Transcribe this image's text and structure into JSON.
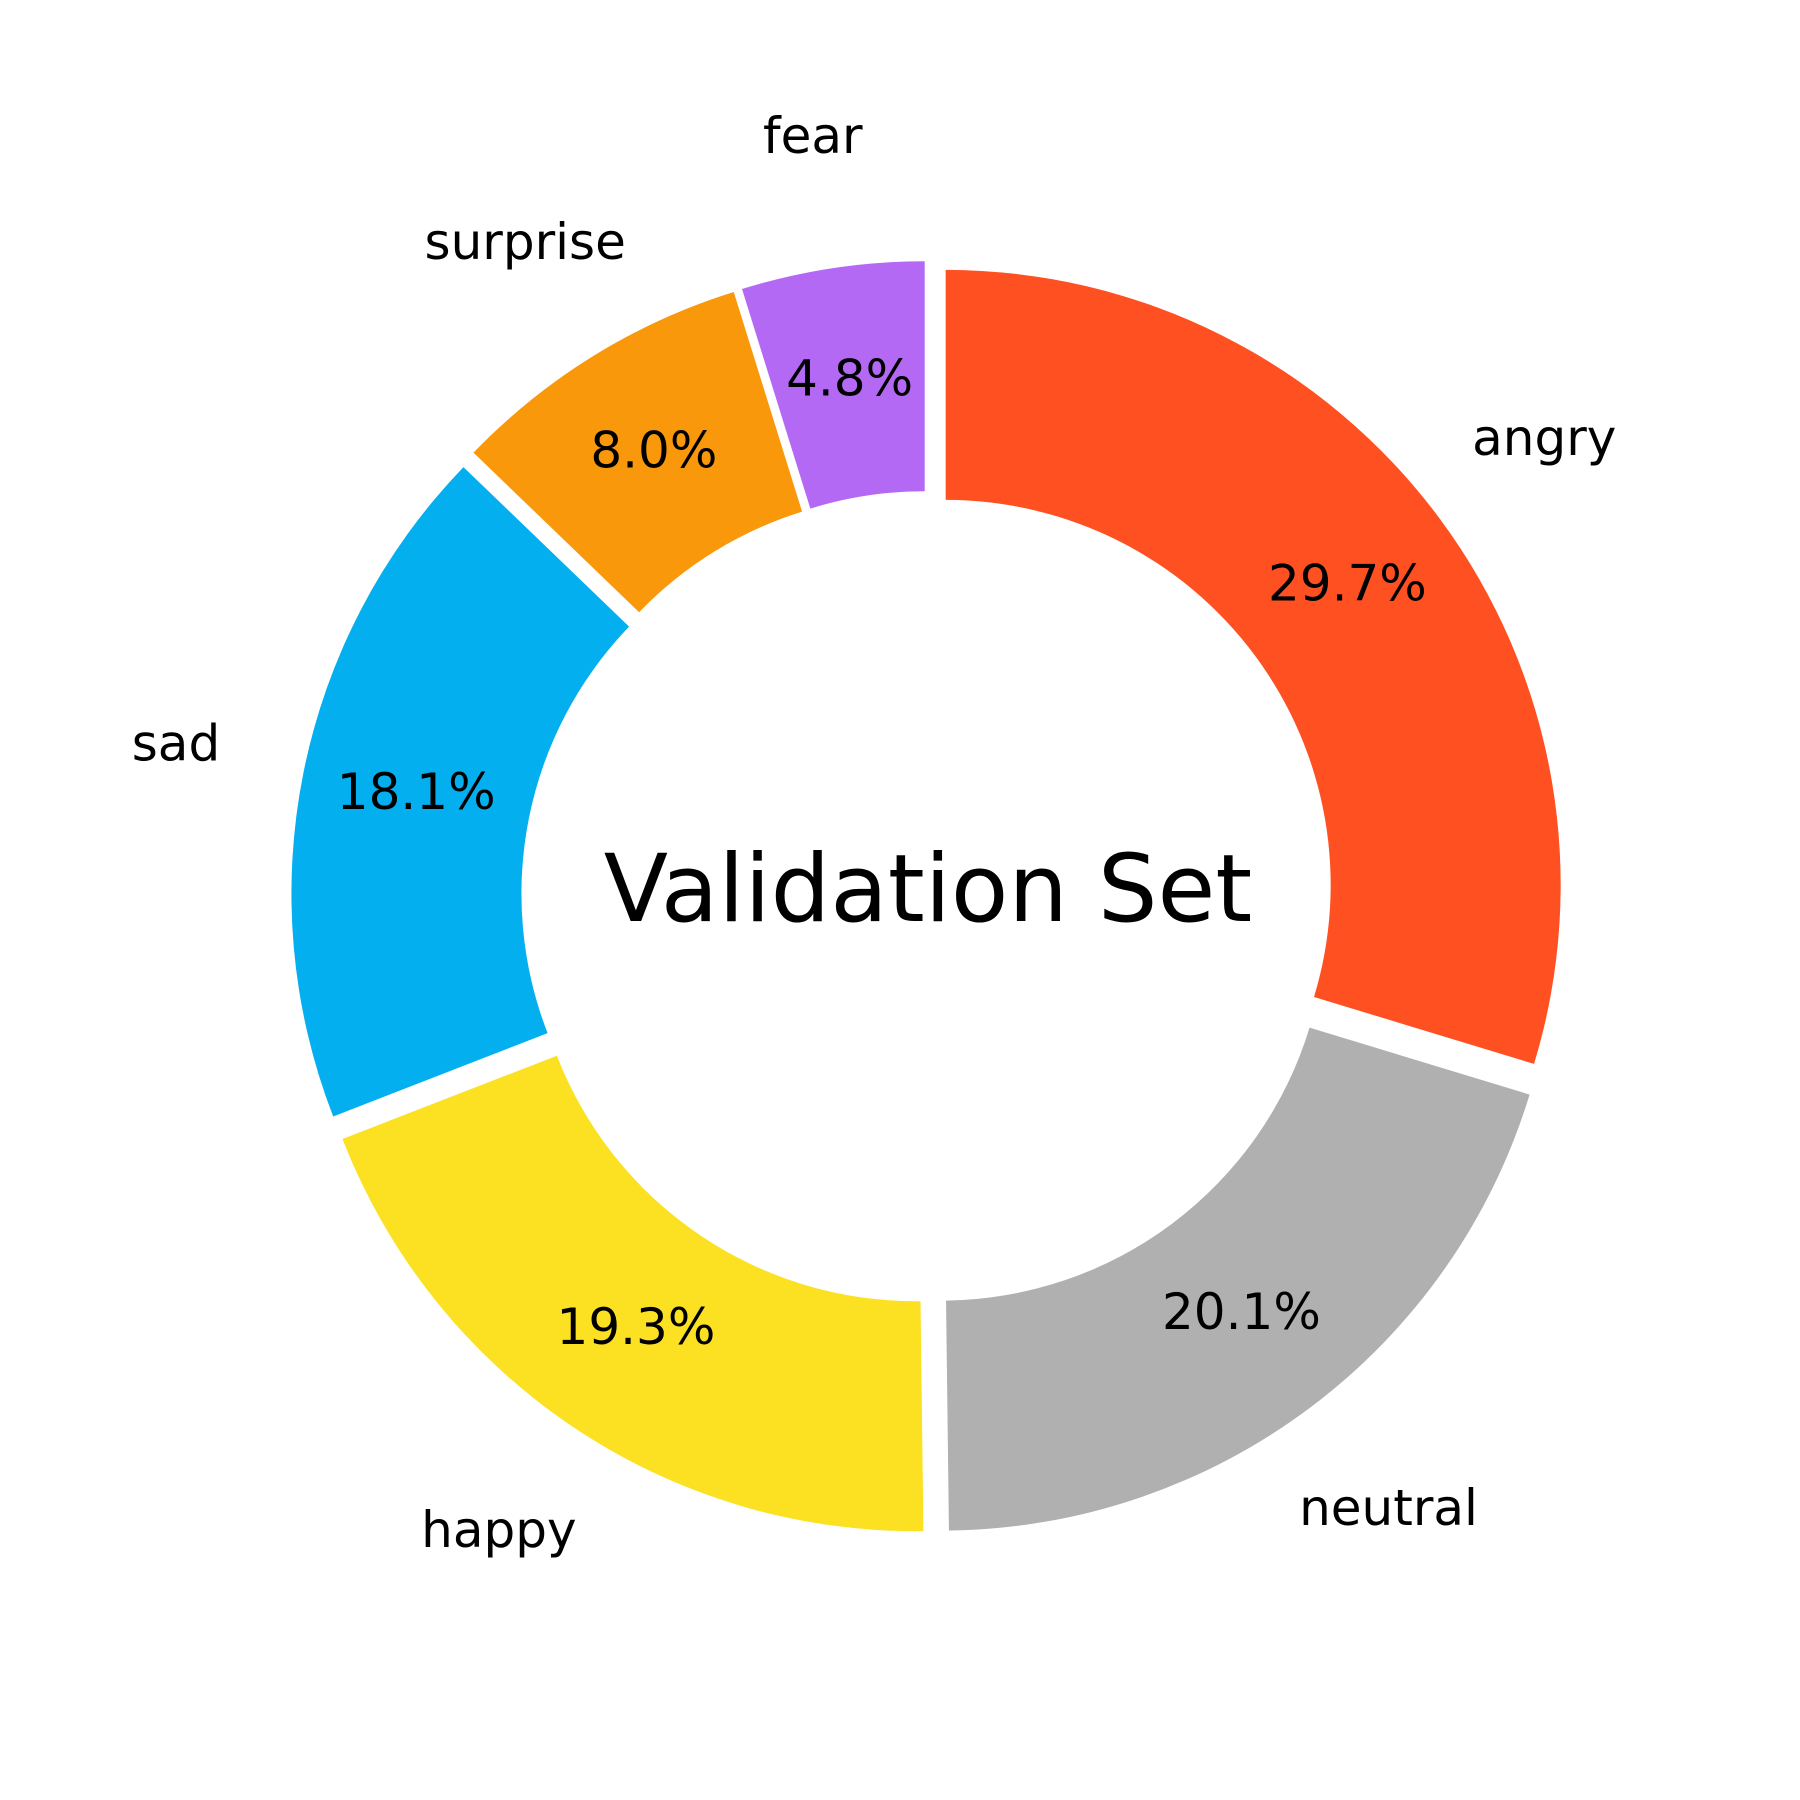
{
  "chart_data": {
    "type": "pie",
    "variant": "donut",
    "center_text": "Validation Set",
    "start": "top",
    "direction": "clockwise",
    "exploded": true,
    "slices": [
      {
        "label": "angry",
        "value": 29.7,
        "pct_text": "29.7%",
        "color": "#FF5022"
      },
      {
        "label": "neutral",
        "value": 20.1,
        "pct_text": "20.1%",
        "color": "#B0B0B0"
      },
      {
        "label": "happy",
        "value": 19.3,
        "pct_text": "19.3%",
        "color": "#FBE122"
      },
      {
        "label": "sad",
        "value": 18.1,
        "pct_text": "18.1%",
        "color": "#03AFEF"
      },
      {
        "label": "surprise",
        "value": 8.0,
        "pct_text": "8.0%",
        "color": "#F9980B"
      },
      {
        "label": "fear",
        "value": 4.8,
        "pct_text": "4.8%",
        "color": "#B469F5"
      }
    ]
  }
}
